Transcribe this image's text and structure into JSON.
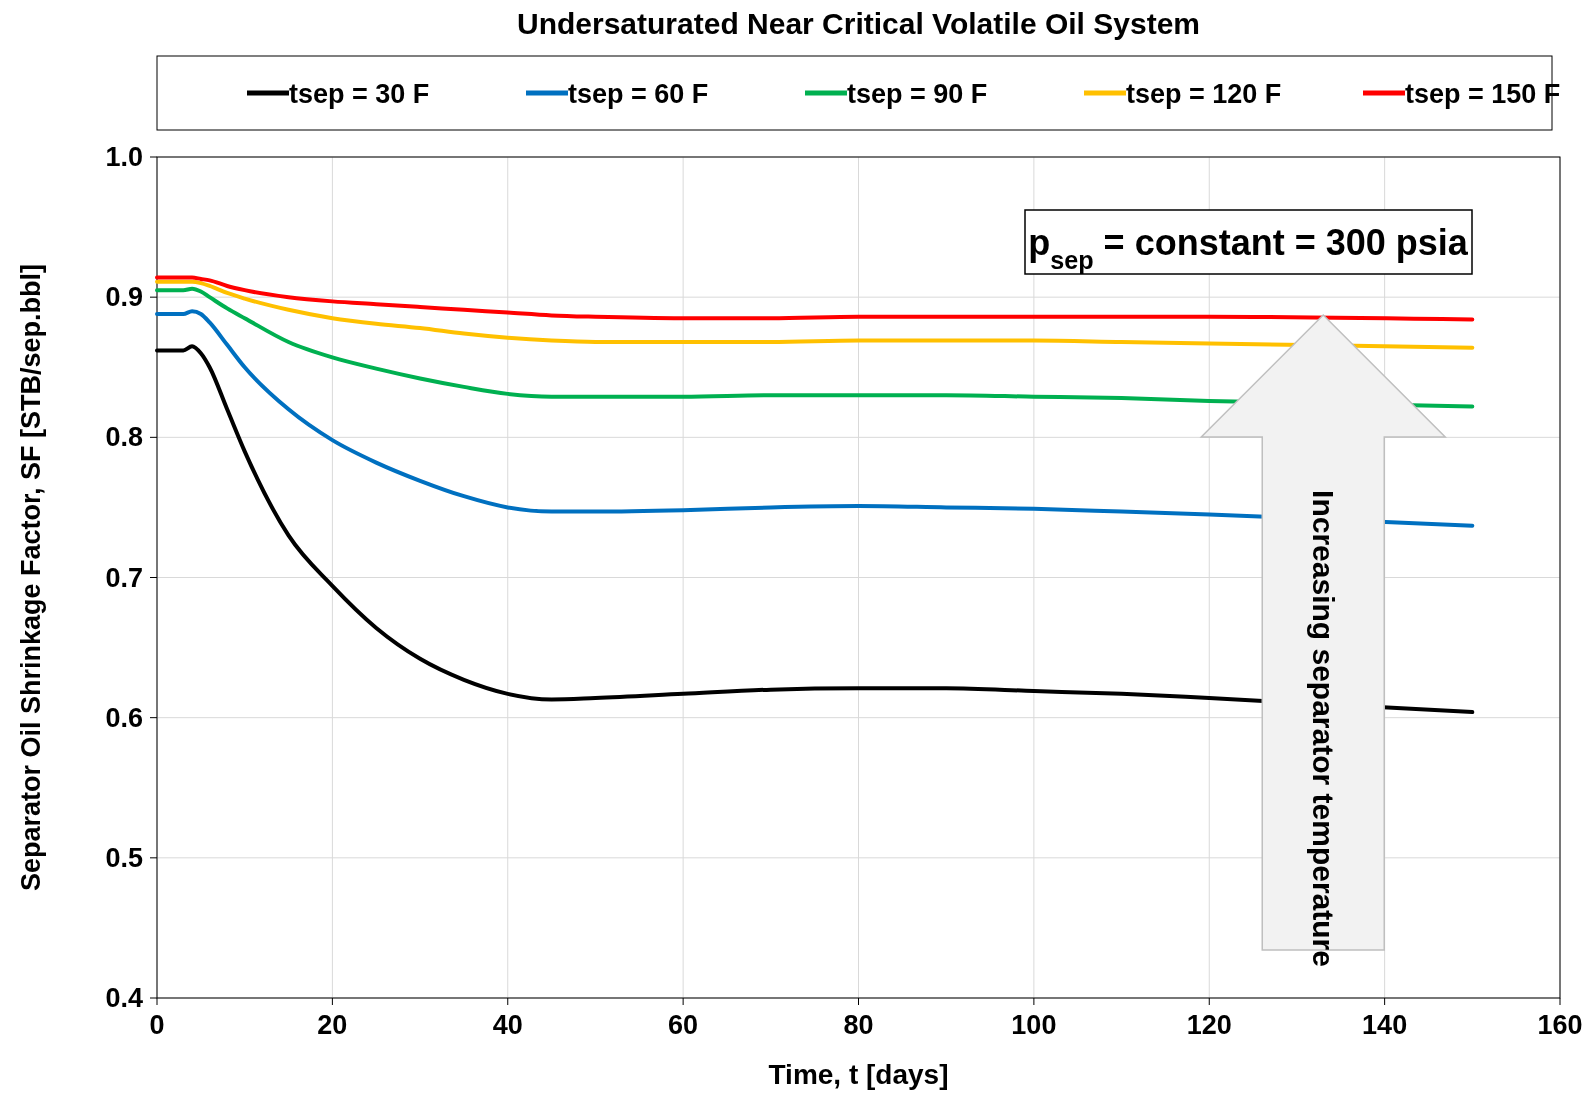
{
  "chart_data": {
    "type": "line",
    "title": "Undersaturated Near Critical Volatile Oil System",
    "xlabel": "Time, t [days]",
    "ylabel": "Separator Oil Shrinkage Factor, SF [STB/sep.bbl]",
    "x": [
      0,
      3,
      4,
      5,
      6,
      8,
      10,
      15,
      20,
      25,
      30,
      35,
      40,
      45,
      50,
      60,
      70,
      80,
      90,
      100,
      110,
      120,
      150
    ],
    "series": [
      {
        "name": "tsep = 30 F",
        "color": "#000000",
        "values": [
          0.862,
          0.862,
          0.865,
          0.86,
          0.85,
          0.82,
          0.79,
          0.73,
          0.694,
          0.664,
          0.642,
          0.627,
          0.617,
          0.613,
          0.614,
          0.617,
          0.62,
          0.621,
          0.621,
          0.619,
          0.617,
          0.614,
          0.604
        ]
      },
      {
        "name": "tsep = 60 F",
        "color": "#0070c0",
        "values": [
          0.888,
          0.888,
          0.89,
          0.888,
          0.882,
          0.866,
          0.85,
          0.82,
          0.798,
          0.782,
          0.769,
          0.758,
          0.75,
          0.747,
          0.747,
          0.748,
          0.75,
          0.751,
          0.75,
          0.749,
          0.747,
          0.745,
          0.737
        ]
      },
      {
        "name": "tsep = 90 F",
        "color": "#00b050",
        "values": [
          0.905,
          0.905,
          0.906,
          0.904,
          0.9,
          0.892,
          0.885,
          0.868,
          0.857,
          0.849,
          0.842,
          0.836,
          0.831,
          0.829,
          0.829,
          0.829,
          0.83,
          0.83,
          0.83,
          0.829,
          0.828,
          0.826,
          0.822
        ]
      },
      {
        "name": "tsep = 120 F",
        "color": "#ffc000",
        "values": [
          0.911,
          0.911,
          0.911,
          0.91,
          0.908,
          0.903,
          0.899,
          0.891,
          0.885,
          0.881,
          0.878,
          0.874,
          0.871,
          0.869,
          0.868,
          0.868,
          0.868,
          0.869,
          0.869,
          0.869,
          0.868,
          0.867,
          0.864
        ]
      },
      {
        "name": "tsep = 150 F",
        "color": "#ff0000",
        "values": [
          0.914,
          0.914,
          0.914,
          0.913,
          0.912,
          0.908,
          0.905,
          0.9,
          0.897,
          0.895,
          0.893,
          0.891,
          0.889,
          0.887,
          0.886,
          0.885,
          0.885,
          0.886,
          0.886,
          0.886,
          0.886,
          0.886,
          0.884
        ]
      }
    ],
    "xlim": [
      0,
      160
    ],
    "xticks": [
      0,
      20,
      40,
      60,
      80,
      100,
      120,
      140,
      160
    ],
    "ylim": [
      0.4,
      1.0
    ],
    "yticks": [
      0.4,
      0.5,
      0.6,
      0.7,
      0.8,
      0.9,
      {
        "value": 1.0,
        "label": "1.0"
      }
    ],
    "grid": true,
    "legend": "top",
    "marker": "none",
    "line_style": "solid",
    "annotations": [
      "p$_{sep}$ = constant = 300 psia",
      "Increasing separator temperature"
    ]
  }
}
